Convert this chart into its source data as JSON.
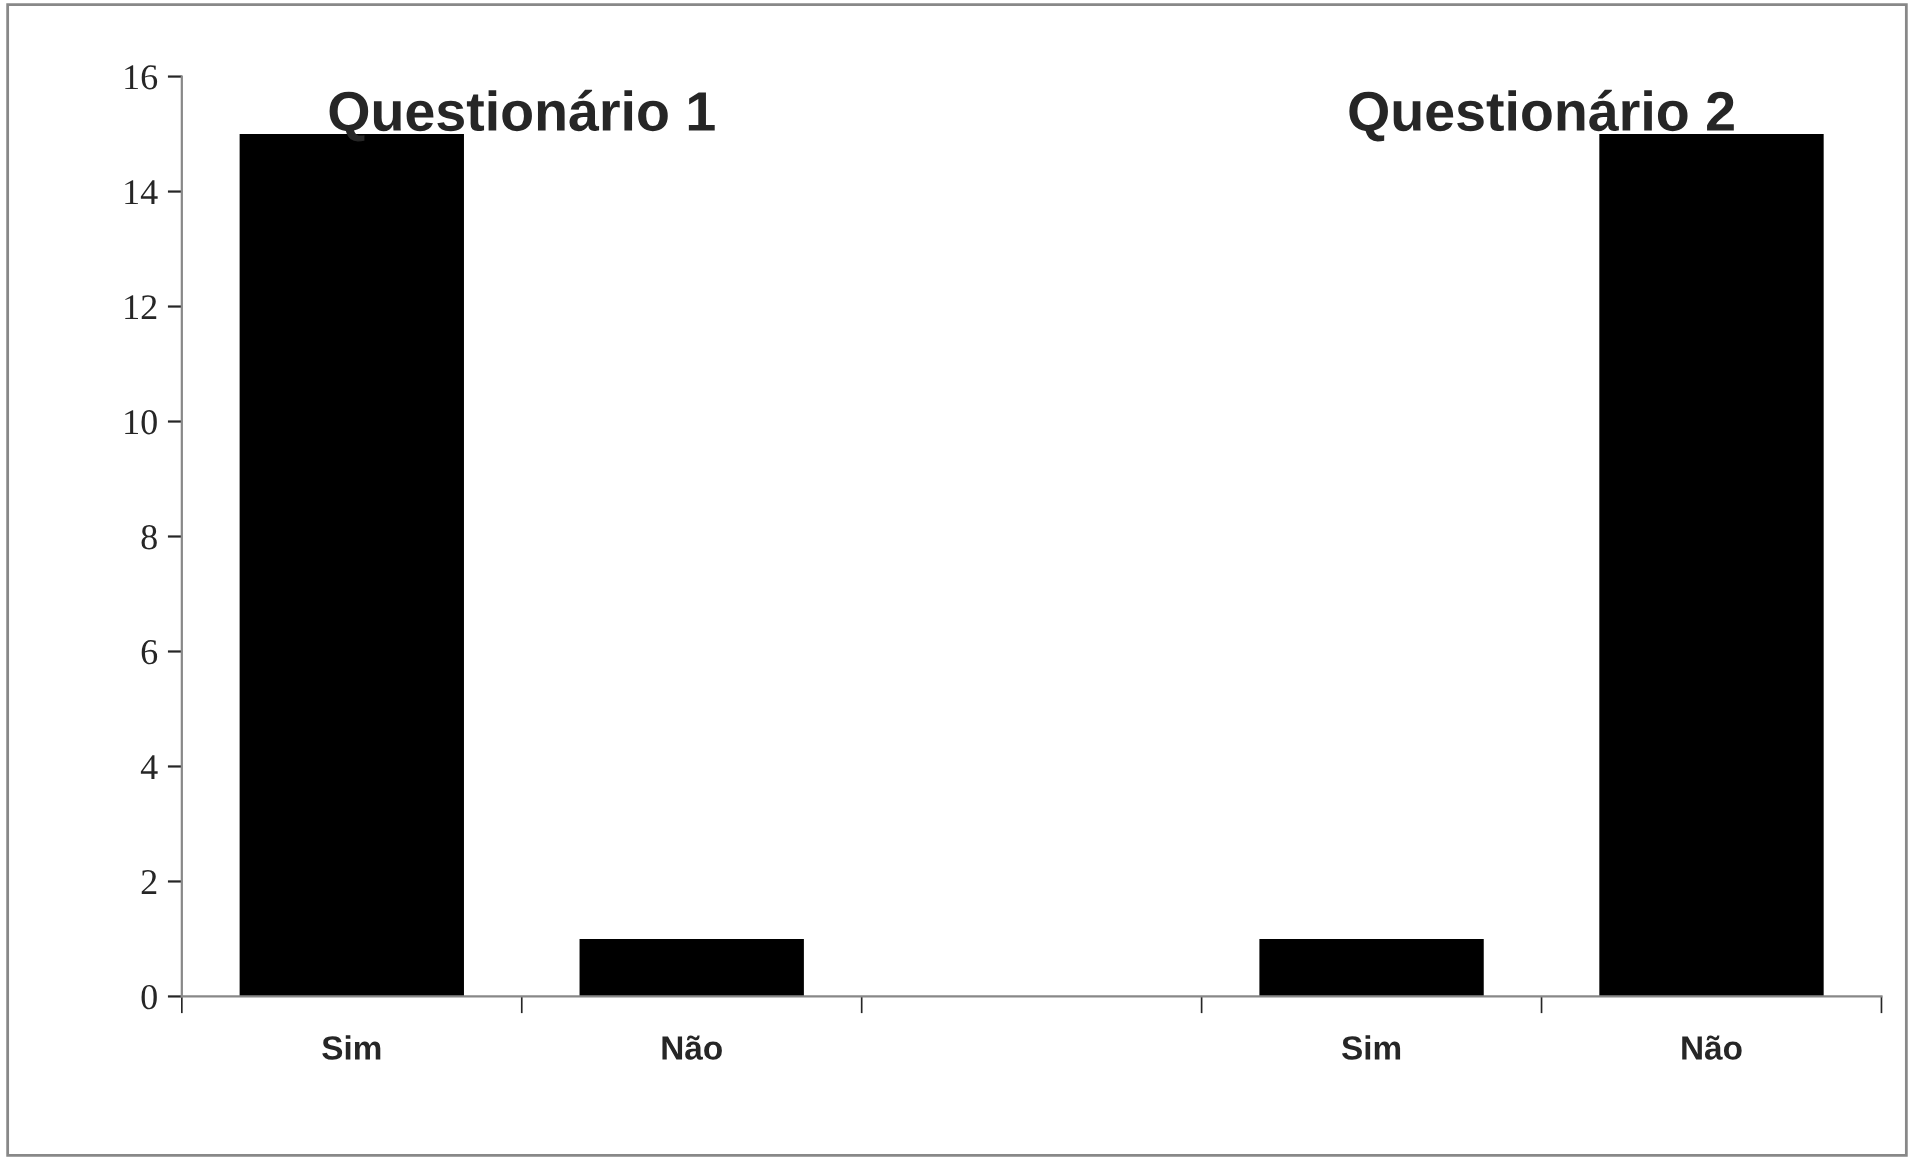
{
  "chart_data": {
    "type": "bar",
    "categories": [
      "Sim",
      "Não",
      null,
      "Sim",
      "Não"
    ],
    "values": [
      15,
      1,
      null,
      1,
      15
    ],
    "color": "#000000",
    "ylim": [
      0,
      16
    ],
    "yticks": [
      0,
      2,
      4,
      6,
      8,
      10,
      12,
      14,
      16
    ],
    "grid": false,
    "annotations": [
      "Questionário 1",
      "Questionário 2"
    ]
  }
}
